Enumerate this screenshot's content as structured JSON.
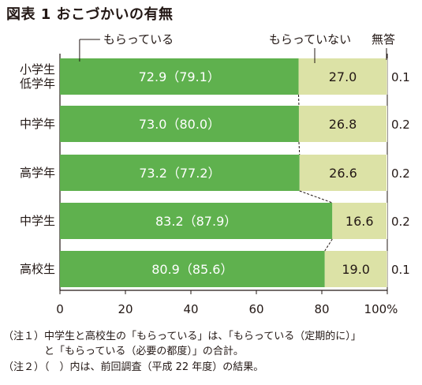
{
  "title": "図表 1 おこづかいの有無",
  "notes": [
    "（注１）中学生と高校生の「もらっている」は、「もらっている（定期的に）」",
    "　　　　と「もらっている（必要の都度）」の合計。",
    "（注２）（　）内は、前回調査（平成 22 年度）の結果。"
  ],
  "colors": {
    "received": "#5fb14e",
    "not_received": "#dce2a6",
    "no_answer": "#ffffff",
    "text": "#231815"
  },
  "chart_data": {
    "type": "bar",
    "orientation": "horizontal",
    "stacked": true,
    "title": "おこづかいの有無",
    "categories": [
      "小学生\n低学年",
      "中学年",
      "高学年",
      "中学生",
      "高校生"
    ],
    "series": [
      {
        "name": "もらっている",
        "values": [
          72.9,
          73.0,
          73.2,
          83.2,
          80.9
        ],
        "labels": [
          "72.9（79.1）",
          "73.0（80.0）",
          "73.2（77.2）",
          "83.2（87.9）",
          "80.9（85.6）"
        ]
      },
      {
        "name": "もらっていない",
        "values": [
          27.0,
          26.8,
          26.6,
          16.6,
          19.0
        ],
        "labels": [
          "27.0",
          "26.8",
          "26.6",
          "16.6",
          "19.0"
        ]
      },
      {
        "name": "無答",
        "values": [
          0.1,
          0.2,
          0.2,
          0.2,
          0.1
        ],
        "labels": [
          "0.1",
          "0.2",
          "0.2",
          "0.2",
          "0.1"
        ]
      }
    ],
    "previous_survey_received": [
      79.1,
      80.0,
      77.2,
      87.9,
      85.6
    ],
    "x_ticks": [
      "0",
      "20",
      "40",
      "60",
      "80",
      "100%"
    ],
    "xlim": [
      0,
      100
    ],
    "grid": false,
    "legend": "top, callout labels"
  }
}
